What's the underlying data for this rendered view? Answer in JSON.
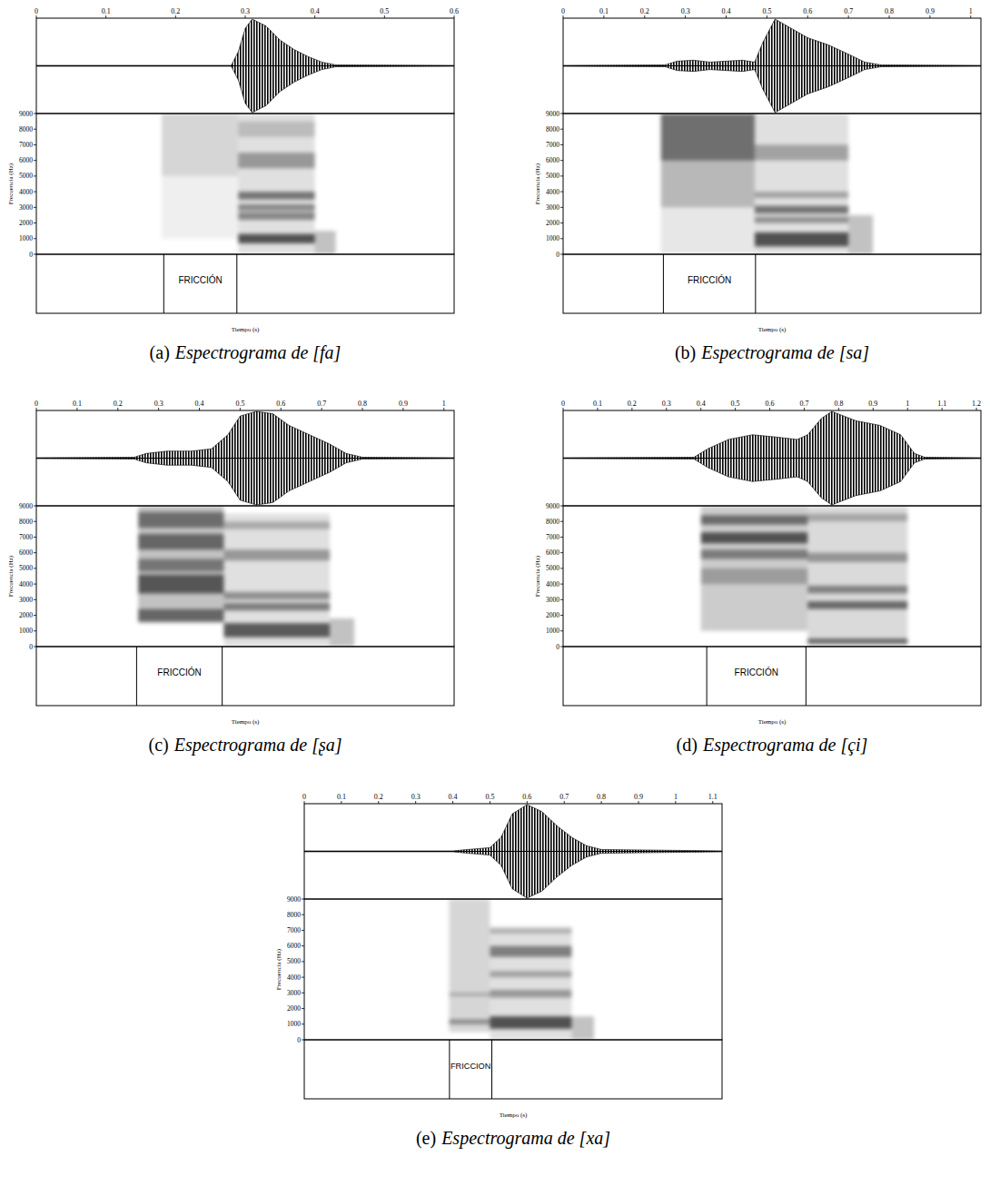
{
  "chart_data": [
    {
      "type": "spectrogram",
      "panel": "(a)",
      "caption": "Espectrograma de [fa]",
      "xlim": [
        0,
        0.6
      ],
      "xticks": [
        0,
        0.1,
        0.2,
        0.3,
        0.4,
        0.5,
        0.6
      ],
      "ylim": [
        0,
        9000
      ],
      "yticks": [
        0,
        1000,
        2000,
        3000,
        4000,
        5000,
        6000,
        7000,
        8000,
        9000
      ],
      "y_label": "Frecuencia (Hz)",
      "x_label": "Tiempo (s)",
      "interval": {
        "label": "FRICCIÓN",
        "start": 0.183,
        "end": 0.288
      },
      "waveform": {
        "x": [
          0,
          0.28,
          0.29,
          0.3,
          0.31,
          0.33,
          0.35,
          0.37,
          0.39,
          0.41,
          0.43,
          0.6
        ],
        "values": [
          0.01,
          0.01,
          0.3,
          0.8,
          1.0,
          0.85,
          0.55,
          0.35,
          0.2,
          0.08,
          0.02,
          0.01
        ]
      },
      "cells": [
        [
          0.18,
          0.29,
          1000,
          5000,
          0.08
        ],
        [
          0.18,
          0.29,
          5000,
          9000,
          0.2
        ],
        [
          0.29,
          0.4,
          0,
          9000,
          0.15
        ],
        [
          0.29,
          0.4,
          700,
          1300,
          0.8
        ],
        [
          0.29,
          0.4,
          2200,
          2700,
          0.5
        ],
        [
          0.29,
          0.4,
          2800,
          3200,
          0.5
        ],
        [
          0.29,
          0.4,
          3500,
          4000,
          0.6
        ],
        [
          0.29,
          0.4,
          5500,
          6500,
          0.4
        ],
        [
          0.29,
          0.4,
          7500,
          8500,
          0.2
        ],
        [
          0.4,
          0.43,
          0,
          1500,
          0.3
        ]
      ]
    },
    {
      "type": "spectrogram",
      "panel": "(b)",
      "caption": "Espectrograma de [sa]",
      "xlim": [
        0,
        1.025
      ],
      "xticks": [
        0,
        0.1,
        0.2,
        0.3,
        0.4,
        0.5,
        0.6,
        0.7,
        0.8,
        0.9,
        1
      ],
      "ylim": [
        0,
        9000
      ],
      "yticks": [
        0,
        1000,
        2000,
        3000,
        4000,
        5000,
        6000,
        7000,
        8000,
        9000
      ],
      "y_label": "Frecuencia (Hz)",
      "x_label": "Tiempo (s)",
      "interval": {
        "label": "FRICCIÓN",
        "start": 0.246,
        "end": 0.472
      },
      "waveform": {
        "x": [
          0,
          0.25,
          0.28,
          0.32,
          0.36,
          0.4,
          0.44,
          0.47,
          0.49,
          0.52,
          0.56,
          0.6,
          0.65,
          0.7,
          0.74,
          0.78,
          1.025
        ],
        "values": [
          0.01,
          0.02,
          0.1,
          0.12,
          0.08,
          0.1,
          0.12,
          0.08,
          0.5,
          1.0,
          0.8,
          0.6,
          0.45,
          0.25,
          0.08,
          0.02,
          0.01
        ]
      },
      "cells": [
        [
          0.24,
          0.47,
          0,
          3000,
          0.12
        ],
        [
          0.24,
          0.47,
          3000,
          9000,
          0.35
        ],
        [
          0.24,
          0.47,
          6000,
          9000,
          0.5
        ],
        [
          0.47,
          0.7,
          0,
          9000,
          0.15
        ],
        [
          0.47,
          0.7,
          500,
          1400,
          0.8
        ],
        [
          0.47,
          0.7,
          2000,
          2400,
          0.45
        ],
        [
          0.47,
          0.7,
          2600,
          3100,
          0.6
        ],
        [
          0.47,
          0.7,
          3600,
          4000,
          0.35
        ],
        [
          0.47,
          0.7,
          6000,
          7000,
          0.35
        ],
        [
          0.7,
          0.76,
          0,
          2500,
          0.3
        ]
      ]
    },
    {
      "type": "spectrogram",
      "panel": "(c)",
      "caption": "Espectrograma de [ʂa]",
      "xlim": [
        0,
        1.025
      ],
      "xticks": [
        0,
        0.1,
        0.2,
        0.3,
        0.4,
        0.5,
        0.6,
        0.7,
        0.8,
        0.9,
        1
      ],
      "ylim": [
        0,
        9000
      ],
      "yticks": [
        0,
        1000,
        2000,
        3000,
        4000,
        5000,
        6000,
        7000,
        8000,
        9000
      ],
      "y_label": "Frecuencia (Hz)",
      "x_label": "Tiempo (s)",
      "interval": {
        "label": "FRICCIÓN",
        "start": 0.246,
        "end": 0.456
      },
      "waveform": {
        "x": [
          0,
          0.24,
          0.27,
          0.32,
          0.38,
          0.43,
          0.45,
          0.47,
          0.5,
          0.54,
          0.58,
          0.62,
          0.67,
          0.72,
          0.76,
          0.8,
          1.025
        ],
        "values": [
          0.01,
          0.02,
          0.1,
          0.15,
          0.15,
          0.2,
          0.35,
          0.5,
          0.9,
          1.0,
          0.95,
          0.7,
          0.5,
          0.3,
          0.1,
          0.02,
          0.01
        ]
      },
      "cells": [
        [
          0.25,
          0.46,
          1500,
          9000,
          0.3
        ],
        [
          0.25,
          0.46,
          1600,
          2400,
          0.6
        ],
        [
          0.25,
          0.46,
          3400,
          4600,
          0.7
        ],
        [
          0.25,
          0.46,
          4800,
          5600,
          0.5
        ],
        [
          0.25,
          0.46,
          6200,
          7200,
          0.6
        ],
        [
          0.25,
          0.46,
          7600,
          8600,
          0.55
        ],
        [
          0.46,
          0.72,
          0,
          8500,
          0.15
        ],
        [
          0.46,
          0.72,
          600,
          1500,
          0.75
        ],
        [
          0.46,
          0.72,
          2300,
          2800,
          0.55
        ],
        [
          0.46,
          0.72,
          3000,
          3500,
          0.45
        ],
        [
          0.46,
          0.72,
          5500,
          6200,
          0.4
        ],
        [
          0.46,
          0.72,
          7500,
          8000,
          0.3
        ],
        [
          0.72,
          0.78,
          0,
          1800,
          0.3
        ]
      ]
    },
    {
      "type": "spectrogram",
      "panel": "(d)",
      "caption": "Espectrograma de [çi]",
      "xlim": [
        0,
        1.213
      ],
      "xticks": [
        0,
        0.1,
        0.2,
        0.3,
        0.4,
        0.5,
        0.6,
        0.7,
        0.8,
        0.9,
        1,
        1.1,
        1.2
      ],
      "ylim": [
        0,
        9000
      ],
      "yticks": [
        0,
        1000,
        2000,
        3000,
        4000,
        5000,
        6000,
        7000,
        8000,
        9000
      ],
      "y_label": "Frecuencia (Hz)",
      "x_label": "Tiempo (s)",
      "interval": {
        "label": "FRICCIÓN",
        "start": 0.417,
        "end": 0.705
      },
      "waveform": {
        "x": [
          0,
          0.38,
          0.42,
          0.48,
          0.55,
          0.62,
          0.68,
          0.71,
          0.75,
          0.78,
          0.85,
          0.92,
          0.98,
          1.02,
          1.05,
          1.213
        ],
        "values": [
          0.01,
          0.02,
          0.2,
          0.4,
          0.5,
          0.45,
          0.4,
          0.5,
          0.85,
          1.0,
          0.8,
          0.7,
          0.5,
          0.1,
          0.02,
          0.01
        ]
      },
      "cells": [
        [
          0.4,
          0.71,
          1000,
          9000,
          0.25
        ],
        [
          0.4,
          0.71,
          4000,
          5000,
          0.3
        ],
        [
          0.4,
          0.71,
          5600,
          6200,
          0.5
        ],
        [
          0.4,
          0.71,
          6600,
          7300,
          0.75
        ],
        [
          0.4,
          0.71,
          7800,
          8400,
          0.6
        ],
        [
          0.71,
          1.0,
          0,
          9000,
          0.18
        ],
        [
          0.71,
          1.0,
          200,
          500,
          0.7
        ],
        [
          0.71,
          1.0,
          2400,
          2900,
          0.65
        ],
        [
          0.71,
          1.0,
          3400,
          3900,
          0.5
        ],
        [
          0.71,
          1.0,
          5400,
          6000,
          0.4
        ],
        [
          0.71,
          1.0,
          8000,
          8500,
          0.3
        ]
      ]
    },
    {
      "type": "spectrogram",
      "panel": "(e)",
      "caption": "Espectrograma de [xa]",
      "xlim": [
        0,
        1.125
      ],
      "xticks": [
        0,
        0.1,
        0.2,
        0.3,
        0.4,
        0.5,
        0.6,
        0.7,
        0.8,
        0.9,
        1,
        1.1
      ],
      "ylim": [
        0,
        9000
      ],
      "yticks": [
        0,
        1000,
        2000,
        3000,
        4000,
        5000,
        6000,
        7000,
        8000,
        9000
      ],
      "y_label": "Frecuencia (Hz)",
      "x_label": "Tiempo (s)",
      "interval": {
        "label": "FRICCION",
        "start": 0.391,
        "end": 0.505
      },
      "waveform": {
        "x": [
          0,
          0.4,
          0.44,
          0.5,
          0.53,
          0.56,
          0.6,
          0.64,
          0.68,
          0.72,
          0.76,
          0.8,
          1.125
        ],
        "values": [
          0.01,
          0.01,
          0.04,
          0.08,
          0.3,
          0.8,
          1.0,
          0.85,
          0.55,
          0.3,
          0.12,
          0.04,
          0.01
        ]
      },
      "cells": [
        [
          0.39,
          0.5,
          500,
          9000,
          0.2
        ],
        [
          0.39,
          0.5,
          1000,
          1300,
          0.45
        ],
        [
          0.39,
          0.5,
          2800,
          3000,
          0.3
        ],
        [
          0.5,
          0.72,
          0,
          7000,
          0.15
        ],
        [
          0.5,
          0.72,
          700,
          1500,
          0.8
        ],
        [
          0.5,
          0.72,
          2700,
          3200,
          0.4
        ],
        [
          0.5,
          0.72,
          4000,
          4400,
          0.35
        ],
        [
          0.5,
          0.72,
          5300,
          6000,
          0.55
        ],
        [
          0.5,
          0.72,
          6800,
          7200,
          0.3
        ],
        [
          0.72,
          0.78,
          0,
          1500,
          0.3
        ]
      ]
    }
  ]
}
